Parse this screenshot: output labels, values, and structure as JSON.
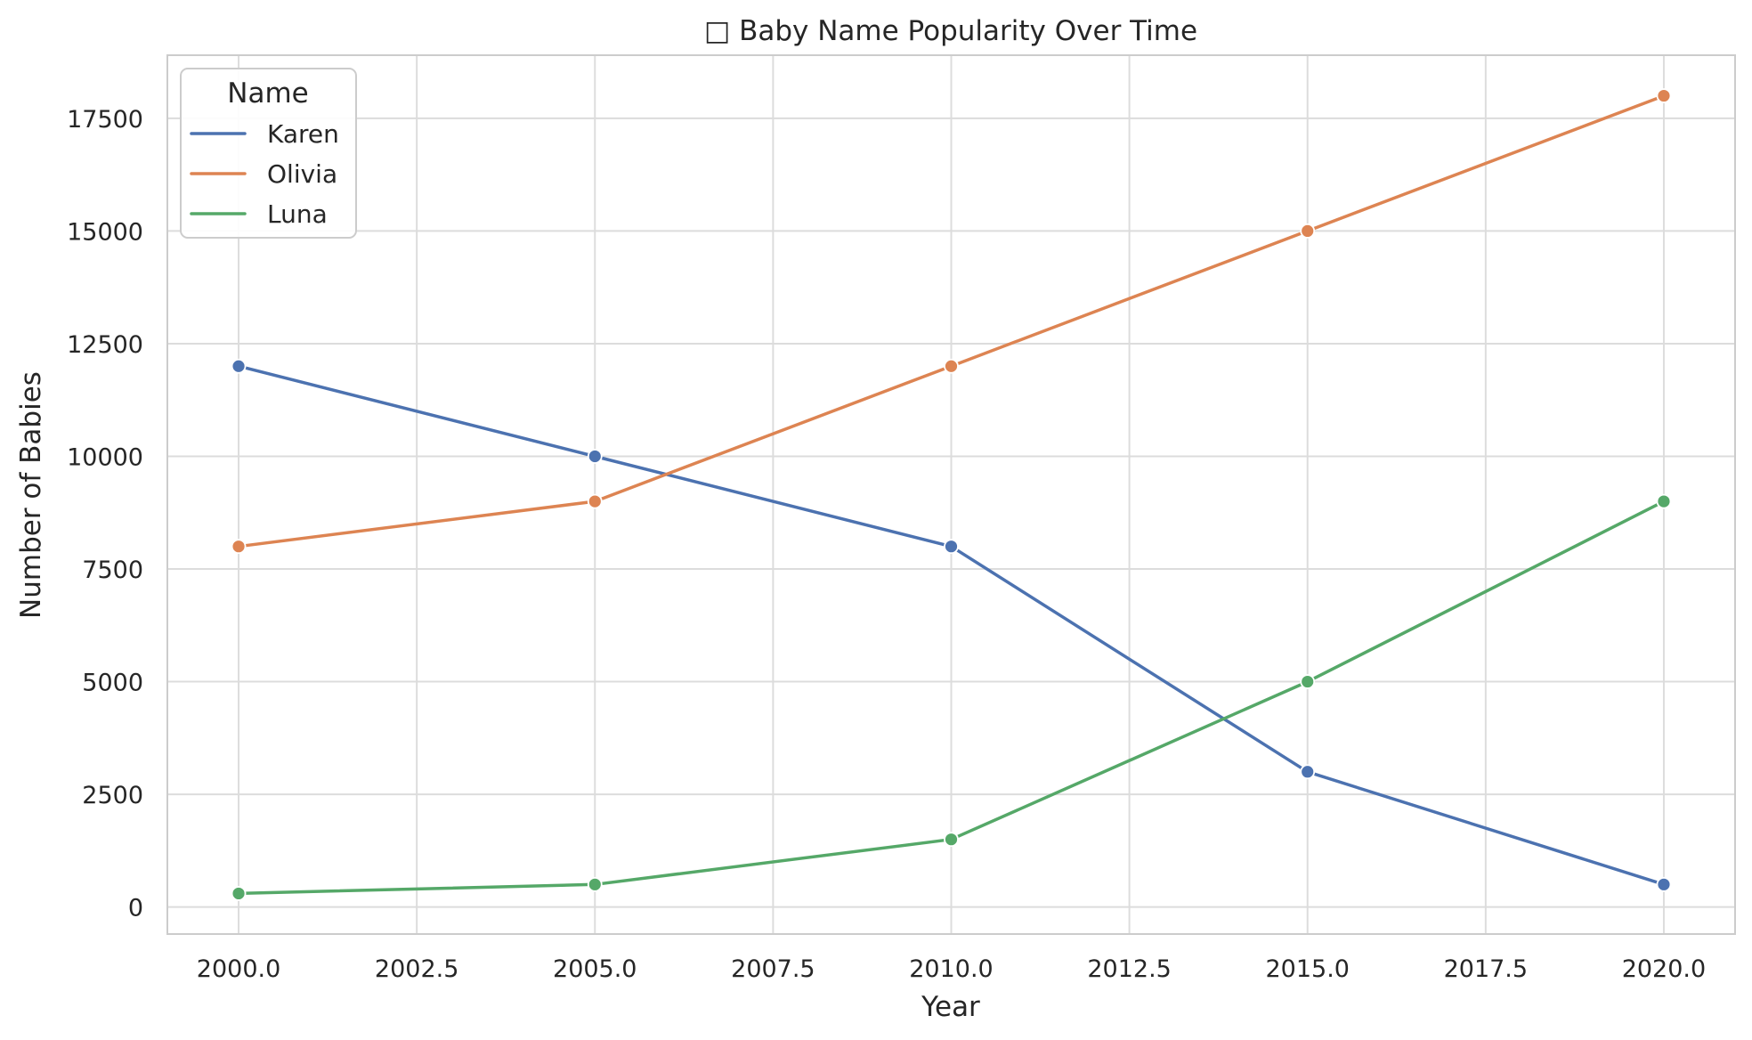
{
  "chart_data": {
    "type": "line",
    "title": "□ Baby Name Popularity Over Time",
    "xlabel": "Year",
    "ylabel": "Number of Babies",
    "x": [
      2000,
      2005,
      2010,
      2015,
      2020
    ],
    "xlim": [
      1999,
      2021
    ],
    "ylim": [
      -600,
      18900
    ],
    "xticks": [
      2000,
      2002.5,
      2005,
      2007.5,
      2010,
      2012.5,
      2015,
      2017.5,
      2020
    ],
    "xtick_labels": [
      "2000.0",
      "2002.5",
      "2005.0",
      "2007.5",
      "2010.0",
      "2012.5",
      "2015.0",
      "2017.5",
      "2020.0"
    ],
    "yticks": [
      0,
      2500,
      5000,
      7500,
      10000,
      12500,
      15000,
      17500
    ],
    "ytick_labels": [
      "0",
      "2500",
      "5000",
      "7500",
      "10000",
      "12500",
      "15000",
      "17500"
    ],
    "grid": true,
    "legend": {
      "title": "Name",
      "placement": "top-left"
    },
    "series": [
      {
        "name": "Karen",
        "color": "#4c72b0",
        "values": [
          12000,
          10000,
          8000,
          3000,
          500
        ]
      },
      {
        "name": "Olivia",
        "color": "#dd8452",
        "values": [
          8000,
          9000,
          12000,
          15000,
          18000
        ]
      },
      {
        "name": "Luna",
        "color": "#55a868",
        "values": [
          300,
          500,
          1500,
          5000,
          9000
        ]
      }
    ]
  }
}
